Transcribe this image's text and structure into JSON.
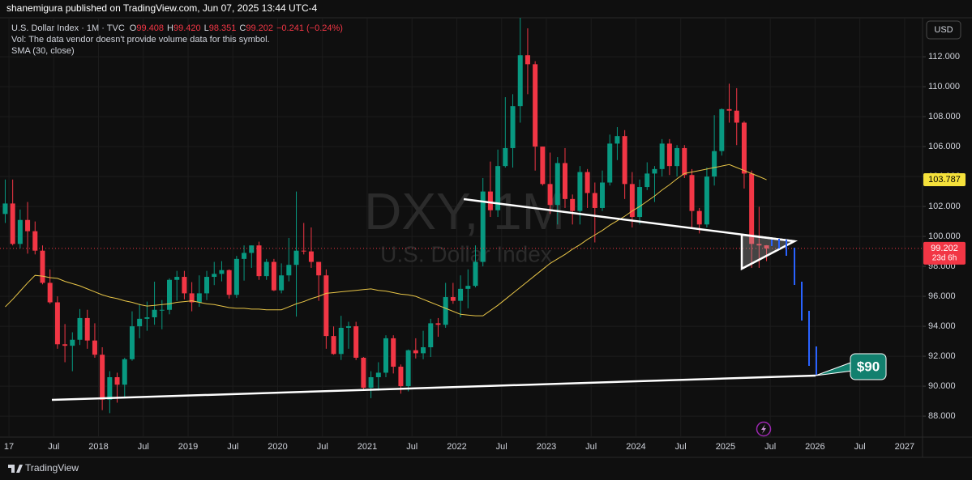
{
  "header": "shanemigura published on TradingView.com, Jun 07, 2025 13:44 UTC-4",
  "legend": {
    "title": "U.S. Dollar Index · 1M · TVC",
    "ohlc": [
      {
        "key": "O",
        "value": "99.408"
      },
      {
        "key": "H",
        "value": "99.420"
      },
      {
        "key": "L",
        "value": "98.351"
      },
      {
        "key": "C",
        "value": "99.202"
      }
    ],
    "change": "−0.241 (−0.24%)",
    "volume_note": "Vol: The data vendor doesn't provide volume data for this symbol.",
    "indicator": "SMA (30, close)"
  },
  "currency": "USD",
  "branding": "TradingView",
  "chart_data": {
    "type": "candlestick",
    "watermark": "DXY, 1M",
    "watermark_subtitle": "U.S. Dollar Index",
    "x": [
      "2016-12",
      "2017-01",
      "2017-02",
      "2017-03",
      "2017-04",
      "2017-05",
      "2017-06",
      "2017-07",
      "2017-08",
      "2017-09",
      "2017-10",
      "2017-11",
      "2017-12",
      "2018-01",
      "2018-02",
      "2018-03",
      "2018-04",
      "2018-05",
      "2018-06",
      "2018-07",
      "2018-08",
      "2018-09",
      "2018-10",
      "2018-11",
      "2018-12",
      "2019-01",
      "2019-02",
      "2019-03",
      "2019-04",
      "2019-05",
      "2019-06",
      "2019-07",
      "2019-08",
      "2019-09",
      "2019-10",
      "2019-11",
      "2019-12",
      "2020-01",
      "2020-02",
      "2020-03",
      "2020-04",
      "2020-05",
      "2020-06",
      "2020-07",
      "2020-08",
      "2020-09",
      "2020-10",
      "2020-11",
      "2020-12",
      "2021-01",
      "2021-02",
      "2021-03",
      "2021-04",
      "2021-05",
      "2021-06",
      "2021-07",
      "2021-08",
      "2021-09",
      "2021-10",
      "2021-11",
      "2021-12",
      "2022-01",
      "2022-02",
      "2022-03",
      "2022-04",
      "2022-05",
      "2022-06",
      "2022-07",
      "2022-08",
      "2022-09",
      "2022-10",
      "2022-11",
      "2022-12",
      "2023-01",
      "2023-02",
      "2023-03",
      "2023-04",
      "2023-05",
      "2023-06",
      "2023-07",
      "2023-08",
      "2023-09",
      "2023-10",
      "2023-11",
      "2023-12",
      "2024-01",
      "2024-02",
      "2024-03",
      "2024-04",
      "2024-05",
      "2024-06",
      "2024-07",
      "2024-08",
      "2024-09",
      "2024-10",
      "2024-11",
      "2024-12",
      "2025-01",
      "2025-02",
      "2025-03",
      "2025-04",
      "2025-05",
      "2025-06"
    ],
    "open": [
      101.5,
      102.2,
      99.5,
      101.1,
      100.35,
      99.05,
      96.9,
      95.6,
      92.8,
      92.7,
      93.1,
      94.55,
      93.05,
      92.1,
      89.1,
      90.6,
      90.1,
      91.8,
      94.0,
      94.5,
      94.6,
      95.1,
      95.1,
      97.1,
      97.3,
      96.2,
      95.6,
      96.2,
      97.3,
      97.5,
      97.75,
      96.1,
      98.5,
      98.9,
      99.4,
      97.35,
      98.3,
      96.4,
      97.4,
      98.1,
      99.05,
      99.0,
      98.3,
      97.4,
      93.35,
      92.15,
      93.9,
      94.0,
      91.9,
      89.9,
      90.6,
      90.9,
      93.2,
      91.3,
      90.0,
      92.4,
      92.2,
      92.6,
      94.2,
      94.1,
      95.95,
      95.7,
      96.5,
      96.7,
      98.3,
      103.0,
      101.75,
      104.7,
      105.9,
      108.7,
      112.1,
      111.5,
      106.0,
      103.5,
      102.1,
      104.9,
      102.5,
      101.7,
      104.3,
      102.9,
      101.9,
      103.6,
      106.2,
      106.7,
      103.5,
      101.3,
      103.3,
      104.2,
      104.5,
      106.2,
      104.7,
      105.9,
      104.1,
      101.7,
      100.8,
      104.0,
      105.7,
      108.5,
      108.4,
      107.6,
      104.2,
      99.5,
      99.408
    ],
    "high": [
      103.8,
      103.8,
      101.8,
      102.3,
      101.0,
      99.4,
      97.8,
      96.0,
      94.15,
      93.6,
      95.15,
      95.1,
      94.2,
      92.6,
      91.0,
      90.9,
      91.9,
      95.0,
      95.5,
      95.65,
      96.98,
      95.75,
      97.2,
      97.7,
      97.7,
      96.95,
      97.4,
      97.7,
      98.3,
      98.35,
      97.8,
      98.7,
      99.4,
      99.4,
      99.65,
      98.5,
      98.5,
      98.2,
      99.9,
      103.0,
      100.9,
      100.6,
      98.3,
      97.8,
      93.99,
      94.7,
      94.3,
      94.3,
      91.95,
      91.0,
      91.6,
      93.4,
      93.4,
      91.45,
      92.45,
      93.2,
      93.7,
      94.5,
      94.55,
      96.9,
      96.9,
      97.4,
      97.8,
      99.4,
      103.9,
      105.0,
      105.8,
      109.3,
      109.5,
      114.8,
      113.9,
      111.7,
      106.0,
      105.6,
      105.3,
      105.9,
      102.8,
      104.7,
      104.5,
      103.6,
      104.4,
      106.8,
      107.3,
      107.1,
      104.3,
      103.8,
      104.95,
      104.7,
      106.5,
      106.5,
      106.1,
      106.1,
      104.5,
      101.9,
      104.6,
      108.1,
      108.55,
      110.2,
      109.9,
      107.7,
      104.4,
      101.98,
      99.42
    ],
    "low": [
      100.9,
      99.4,
      99.2,
      98.85,
      98.8,
      96.8,
      95.5,
      92.5,
      91.6,
      91.0,
      92.75,
      92.5,
      91.9,
      88.4,
      88.2,
      88.9,
      89.2,
      91.7,
      93.2,
      93.7,
      94.1,
      93.8,
      94.8,
      95.7,
      95.8,
      95.0,
      95.3,
      95.75,
      96.75,
      97.0,
      95.85,
      95.9,
      97.05,
      97.9,
      97.1,
      97.1,
      96.35,
      96.2,
      97.0,
      94.65,
      98.8,
      97.9,
      95.7,
      92.5,
      92.1,
      91.75,
      92.5,
      91.75,
      89.7,
      89.2,
      89.7,
      90.6,
      90.85,
      89.5,
      89.65,
      91.85,
      91.8,
      91.95,
      93.3,
      93.9,
      95.5,
      94.6,
      95.2,
      96.6,
      98.0,
      101.3,
      101.3,
      104.6,
      104.6,
      107.6,
      109.5,
      104.4,
      103.4,
      101.5,
      100.8,
      101.9,
      100.8,
      100.8,
      101.9,
      99.6,
      101.7,
      103.4,
      105.1,
      102.5,
      100.6,
      100.8,
      103.1,
      102.3,
      104.0,
      104.1,
      104.0,
      103.9,
      100.5,
      100.2,
      100.6,
      103.4,
      105.4,
      107.6,
      106.1,
      103.2,
      97.9,
      97.9,
      98.351
    ],
    "close": [
      102.2,
      99.5,
      101.1,
      100.35,
      99.05,
      96.9,
      95.6,
      92.8,
      92.7,
      93.1,
      94.55,
      93.05,
      92.1,
      89.1,
      90.6,
      90.1,
      91.8,
      94.0,
      94.5,
      94.6,
      95.1,
      95.1,
      97.1,
      97.3,
      96.2,
      95.6,
      96.2,
      97.3,
      97.5,
      97.75,
      96.1,
      98.5,
      98.9,
      99.4,
      97.35,
      98.3,
      96.4,
      97.4,
      98.1,
      99.05,
      99.0,
      98.3,
      97.4,
      93.35,
      92.15,
      93.9,
      94.0,
      91.9,
      89.9,
      90.6,
      90.9,
      93.2,
      91.3,
      90.0,
      92.4,
      92.2,
      92.6,
      94.2,
      94.1,
      95.95,
      95.7,
      96.5,
      96.7,
      98.3,
      103.0,
      101.75,
      104.7,
      105.9,
      108.7,
      112.1,
      111.5,
      106.0,
      103.5,
      102.1,
      104.9,
      102.5,
      101.7,
      104.3,
      102.9,
      101.9,
      103.6,
      106.2,
      106.7,
      103.5,
      101.3,
      103.3,
      104.2,
      104.5,
      106.2,
      104.7,
      105.9,
      104.1,
      101.7,
      100.8,
      104.0,
      105.7,
      108.5,
      108.4,
      107.6,
      104.2,
      99.5,
      99.4,
      99.202
    ],
    "sma": [
      95.3,
      95.8,
      96.35,
      96.9,
      97.4,
      97.35,
      97.25,
      97.2,
      97.0,
      96.85,
      96.7,
      96.5,
      96.3,
      96.1,
      95.95,
      95.85,
      95.7,
      95.6,
      95.45,
      95.35,
      95.4,
      95.45,
      95.5,
      95.6,
      95.65,
      95.7,
      95.6,
      95.5,
      95.45,
      95.35,
      95.25,
      95.2,
      95.2,
      95.15,
      95.15,
      95.1,
      95.1,
      95.1,
      95.3,
      95.5,
      95.65,
      95.85,
      96.0,
      96.2,
      96.25,
      96.3,
      96.35,
      96.4,
      96.45,
      96.5,
      96.4,
      96.35,
      96.25,
      96.15,
      96.1,
      96.0,
      95.8,
      95.6,
      95.4,
      95.2,
      95.0,
      94.8,
      94.75,
      94.7,
      94.7,
      95.05,
      95.4,
      95.8,
      96.2,
      96.6,
      97.0,
      97.4,
      97.8,
      98.2,
      98.5,
      98.8,
      99.15,
      99.45,
      99.8,
      100.1,
      100.4,
      100.75,
      101.05,
      101.35,
      101.7,
      102.0,
      102.35,
      102.7,
      103.1,
      103.45,
      103.85,
      104.2,
      104.3,
      104.4,
      104.5,
      104.6,
      104.7,
      104.8,
      104.6,
      104.4,
      104.2,
      104.0,
      103.787
    ],
    "up_color": "#089981",
    "down_color": "#f23645",
    "sma_color": "#e8c547",
    "sma_last": 103.787,
    "last_price": 99.202,
    "countdown": "23d 6h",
    "annotation": "$90",
    "xlim": [
      2016.9,
      2027.2
    ],
    "ylim": [
      86.6,
      114.6
    ],
    "xticks": [
      {
        "value": 2017,
        "label": "17"
      },
      {
        "value": 2017.5,
        "label": "Jul"
      },
      2018,
      {
        "value": 2018.5,
        "label": "Jul"
      },
      2019,
      {
        "value": 2019.5,
        "label": "Jul"
      },
      2020,
      {
        "value": 2020.5,
        "label": "Jul"
      },
      2021,
      {
        "value": 2021.5,
        "label": "Jul"
      },
      2022,
      {
        "value": 2022.5,
        "label": "Jul"
      },
      2023,
      {
        "value": 2023.5,
        "label": "Jul"
      },
      2024,
      {
        "value": 2024.5,
        "label": "Jul"
      },
      2025,
      {
        "value": 2025.5,
        "label": "Jul"
      },
      2026,
      {
        "value": 2026.5,
        "label": "Jul"
      },
      2027
    ],
    "yticks": [
      {
        "value": 88,
        "label": "88.000"
      },
      {
        "value": 90,
        "label": "90.000"
      },
      {
        "value": 92,
        "label": "92.000"
      },
      {
        "value": 94,
        "label": "94.000"
      },
      {
        "value": 96,
        "label": "96.000"
      },
      {
        "value": 98,
        "label": "98.000"
      },
      {
        "value": 100,
        "label": "100.000"
      },
      {
        "value": 102,
        "label": "102.000"
      },
      {
        "value": 104,
        "label": "104.000"
      },
      {
        "value": 106,
        "label": "106.000"
      },
      {
        "value": 108,
        "label": "108.000"
      },
      {
        "value": 110,
        "label": "110.000"
      },
      {
        "value": 112,
        "label": "112.000"
      }
    ],
    "grid": true
  }
}
